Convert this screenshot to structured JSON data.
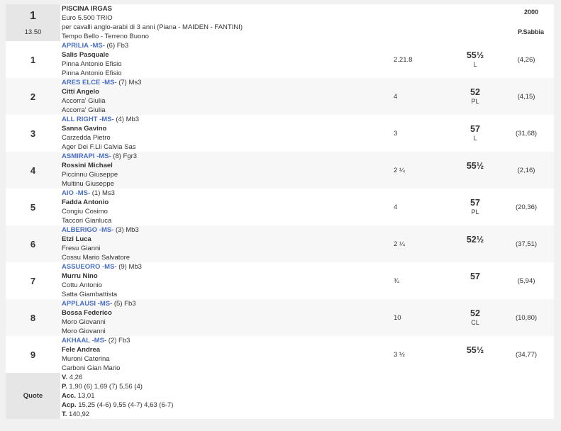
{
  "race": {
    "number": "1",
    "time": "13.50",
    "name": "PISCINA IRGAS",
    "prize": "Euro 5.500 TRIO",
    "conditions": "per cavalli anglo-arabi di 3 anni (Piana -  MAIDEN  - FANTINI)",
    "weather": "Tempo Bello - Terreno Buono",
    "distance": "2000",
    "track": "P.Sabbia"
  },
  "results": [
    {
      "pos": "1",
      "horse": "APRILIA -MS-",
      "extra": " (6) Fb3",
      "jockey": "Salis Pasquale",
      "trainer": "Pinna Antonio Efisio",
      "owner": "Pinna Antonio Efisio",
      "gap": "2.21.8",
      "weight": "55½",
      "weight_note": "L",
      "odds": "(4,26)"
    },
    {
      "pos": "2",
      "horse": "ARES ELCE -MS-",
      "extra": " (7) Ms3",
      "jockey": "Citti Angelo",
      "trainer": "Accorra' Giulia",
      "owner": "Accorra' Giulia",
      "gap": "4",
      "weight": "52",
      "weight_note": "PL",
      "odds": "(4,15)"
    },
    {
      "pos": "3",
      "horse": "ALL RIGHT -MS-",
      "extra": " (4) Mb3",
      "jockey": "Sanna Gavino",
      "trainer": "Carzedda Pietro",
      "owner": "Ager Dei F.Lli Calvia Sas",
      "gap": "3",
      "weight": "57",
      "weight_note": "L",
      "odds": "(31,68)"
    },
    {
      "pos": "4",
      "horse": "ASMIRAPI -MS-",
      "extra": " (8) Fgr3",
      "jockey": "Rossini Michael",
      "trainer": "Piccinnu Giuseppe",
      "owner": "Multinu Giuseppe",
      "gap": "2 ¼",
      "weight": "55½",
      "weight_note": "",
      "odds": "(2,16)"
    },
    {
      "pos": "5",
      "horse": "AIO -MS-",
      "extra": " (1) Ms3",
      "jockey": "Fadda Antonio",
      "trainer": "Congiu Cosimo",
      "owner": "Taccori Gianluca",
      "gap": "4",
      "weight": "57",
      "weight_note": "PL",
      "odds": "(20,36)"
    },
    {
      "pos": "6",
      "horse": "ALBERIGO -MS-",
      "extra": " (3) Mb3",
      "jockey": "Etzi Luca",
      "trainer": "Fresu Gianni",
      "owner": "Cossu Mario Salvatore",
      "gap": "2 ¼",
      "weight": "52½",
      "weight_note": "",
      "odds": "(37,51)"
    },
    {
      "pos": "7",
      "horse": "ASSUEORO -MS-",
      "extra": " (9) Mb3",
      "jockey": "Murru Nino",
      "trainer": "Cottu Antonio",
      "owner": "Satta Giambattista",
      "gap": "¾",
      "weight": "57",
      "weight_note": "",
      "odds": "(5,94)"
    },
    {
      "pos": "8",
      "horse": "APPLAUSI -MS-",
      "extra": " (5) Fb3",
      "jockey": "Bossa Federico",
      "trainer": "Moro Giovanni",
      "owner": "Moro Giovanni",
      "gap": "10",
      "weight": "52",
      "weight_note": "CL",
      "odds": "(10,80)"
    },
    {
      "pos": "9",
      "horse": "AKHAAL -MS-",
      "extra": " (2) Fb3",
      "jockey": "Fele Andrea",
      "trainer": "Muroni Caterina",
      "owner": "Carboni Gian Mario",
      "gap": "3 ½",
      "weight": "55½",
      "weight_note": "",
      "odds": "(34,77)"
    }
  ],
  "quote": {
    "label": "Quote",
    "lines": [
      {
        "k": "V.",
        "v": " 4,26"
      },
      {
        "k": "P.",
        "v": " 1,90 (6)  1,69 (7)  5,56 (4)"
      },
      {
        "k": "Acc.",
        "v": " 13,01"
      },
      {
        "k": "Acp.",
        "v": " 15,25 (4-6)  9,55 (4-7)  4,63 (6-7)"
      },
      {
        "k": "T.",
        "v": " 140,92"
      }
    ]
  },
  "colors": {
    "horse_link": "#4a6fc4",
    "label_bg": "#e6e6e6",
    "alt_row": "#f7f7f7"
  }
}
